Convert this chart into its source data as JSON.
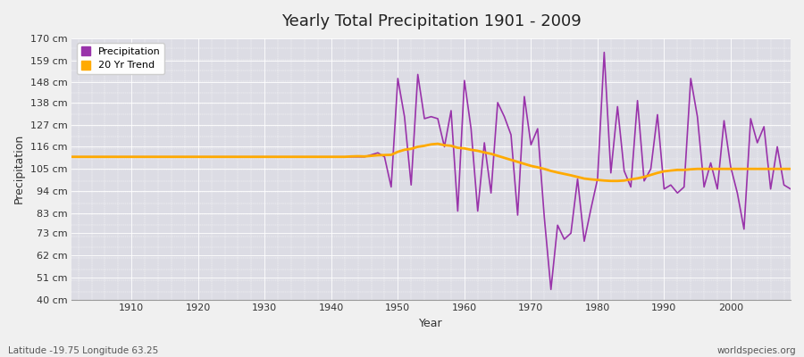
{
  "title": "Yearly Total Precipitation 1901 - 2009",
  "xlabel": "Year",
  "ylabel": "Precipitation",
  "bottom_left_label": "Latitude -19.75 Longitude 63.25",
  "bottom_right_label": "worldspecies.org",
  "fig_bg_color": "#f0f0f0",
  "plot_bg_color": "#dcdce4",
  "precip_color": "#9933aa",
  "trend_color": "#ffaa00",
  "ylim": [
    40,
    170
  ],
  "yticks": [
    40,
    51,
    62,
    73,
    83,
    94,
    105,
    116,
    127,
    138,
    148,
    159,
    170
  ],
  "ytick_labels": [
    "40 cm",
    "51 cm",
    "62 cm",
    "73 cm",
    "83 cm",
    "94 cm",
    "105 cm",
    "116 cm",
    "127 cm",
    "138 cm",
    "148 cm",
    "159 cm",
    "170 cm"
  ],
  "xlim": [
    1901,
    2009
  ],
  "xticks": [
    1910,
    1920,
    1930,
    1940,
    1950,
    1960,
    1970,
    1980,
    1990,
    2000
  ],
  "years": [
    1901,
    1902,
    1903,
    1904,
    1905,
    1906,
    1907,
    1908,
    1909,
    1910,
    1911,
    1912,
    1913,
    1914,
    1915,
    1916,
    1917,
    1918,
    1919,
    1920,
    1921,
    1922,
    1923,
    1924,
    1925,
    1926,
    1927,
    1928,
    1929,
    1930,
    1931,
    1932,
    1933,
    1934,
    1935,
    1936,
    1937,
    1938,
    1939,
    1940,
    1941,
    1942,
    1943,
    1944,
    1945,
    1946,
    1947,
    1948,
    1949,
    1950,
    1951,
    1952,
    1953,
    1954,
    1955,
    1956,
    1957,
    1958,
    1959,
    1960,
    1961,
    1962,
    1963,
    1964,
    1965,
    1966,
    1967,
    1968,
    1969,
    1970,
    1971,
    1972,
    1973,
    1974,
    1975,
    1976,
    1977,
    1978,
    1979,
    1980,
    1981,
    1982,
    1983,
    1984,
    1985,
    1986,
    1987,
    1988,
    1989,
    1990,
    1991,
    1992,
    1993,
    1994,
    1995,
    1996,
    1997,
    1998,
    1999,
    2000,
    2001,
    2002,
    2003,
    2004,
    2005,
    2006,
    2007,
    2008,
    2009
  ],
  "precip": [
    111,
    111,
    111,
    111,
    111,
    111,
    111,
    111,
    111,
    111,
    111,
    111,
    111,
    111,
    111,
    111,
    111,
    111,
    111,
    111,
    111,
    111,
    111,
    111,
    111,
    111,
    111,
    111,
    111,
    111,
    111,
    111,
    111,
    111,
    111,
    111,
    111,
    111,
    111,
    111,
    111,
    111,
    111,
    111,
    111,
    112,
    113,
    111,
    96,
    150,
    131,
    97,
    152,
    130,
    131,
    130,
    116,
    134,
    84,
    149,
    125,
    84,
    118,
    93,
    138,
    131,
    122,
    82,
    141,
    117,
    125,
    81,
    45,
    77,
    70,
    73,
    100,
    69,
    85,
    100,
    163,
    103,
    136,
    104,
    96,
    139,
    99,
    105,
    132,
    95,
    97,
    93,
    96,
    150,
    131,
    96,
    108,
    95,
    129,
    106,
    93,
    75,
    130,
    118,
    126,
    95,
    116,
    97,
    95
  ],
  "trend": [
    111.0,
    111.0,
    111.0,
    111.0,
    111.0,
    111.0,
    111.0,
    111.0,
    111.0,
    111.0,
    111.0,
    111.0,
    111.0,
    111.0,
    111.0,
    111.0,
    111.0,
    111.0,
    111.0,
    111.0,
    111.0,
    111.0,
    111.0,
    111.0,
    111.0,
    111.0,
    111.0,
    111.0,
    111.0,
    111.0,
    111.0,
    111.0,
    111.0,
    111.0,
    111.0,
    111.0,
    111.0,
    111.0,
    111.0,
    111.0,
    111.0,
    111.0,
    111.2,
    111.3,
    111.2,
    111.5,
    111.8,
    111.9,
    112.0,
    113.5,
    114.5,
    115.0,
    116.0,
    116.5,
    117.2,
    117.5,
    116.8,
    116.5,
    115.5,
    115.2,
    114.5,
    114.0,
    113.2,
    112.5,
    111.5,
    110.5,
    109.5,
    108.5,
    107.5,
    106.5,
    105.8,
    105.0,
    104.0,
    103.2,
    102.5,
    101.8,
    101.0,
    100.2,
    99.8,
    99.5,
    99.2,
    99.0,
    99.0,
    99.2,
    99.8,
    100.3,
    101.0,
    102.0,
    103.0,
    103.8,
    104.2,
    104.5,
    104.5,
    104.8,
    105.0,
    105.0,
    105.0,
    105.0,
    105.0,
    105.0,
    105.0,
    105.0,
    105.0,
    105.0,
    105.0,
    105.0,
    105.0,
    105.0,
    105.0
  ]
}
